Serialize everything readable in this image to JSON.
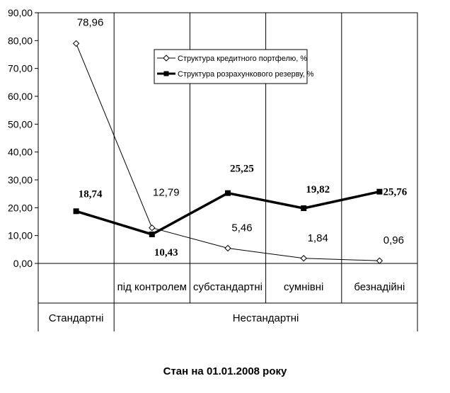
{
  "chart_data": {
    "type": "line",
    "categories": [
      "Стандартні",
      "під контролем",
      "субстандартні",
      "сумнівні",
      "безнадійні"
    ],
    "group_labels": [
      {
        "label": "Стандартні",
        "from": 0,
        "to": 0
      },
      {
        "label": "Нестандартні",
        "from": 1,
        "to": 4
      }
    ],
    "series": [
      {
        "name": "Структура кредитного портфелю, %",
        "values": [
          78.96,
          12.79,
          5.46,
          1.84,
          0.96
        ],
        "labels": [
          "78,96",
          "12,79",
          "5,46",
          "1,84",
          "0,96"
        ],
        "marker": "hollow-diamond",
        "color": "#000000"
      },
      {
        "name": "Структура розрахункового резерву, %",
        "values": [
          18.74,
          10.43,
          25.25,
          19.82,
          25.76
        ],
        "labels": [
          "18,74",
          "10,43",
          "25,25",
          "19,82",
          "25,76"
        ],
        "marker": "filled-square",
        "color": "#000000"
      }
    ],
    "ylim": [
      0,
      90
    ],
    "yticks": [
      "0,00",
      "10,00",
      "20,00",
      "30,00",
      "40,00",
      "50,00",
      "60,00",
      "70,00",
      "80,00",
      "90,00"
    ],
    "grid": "vertical",
    "legend_position": "top-center",
    "caption": "Стан на 01.01.2008 року"
  }
}
